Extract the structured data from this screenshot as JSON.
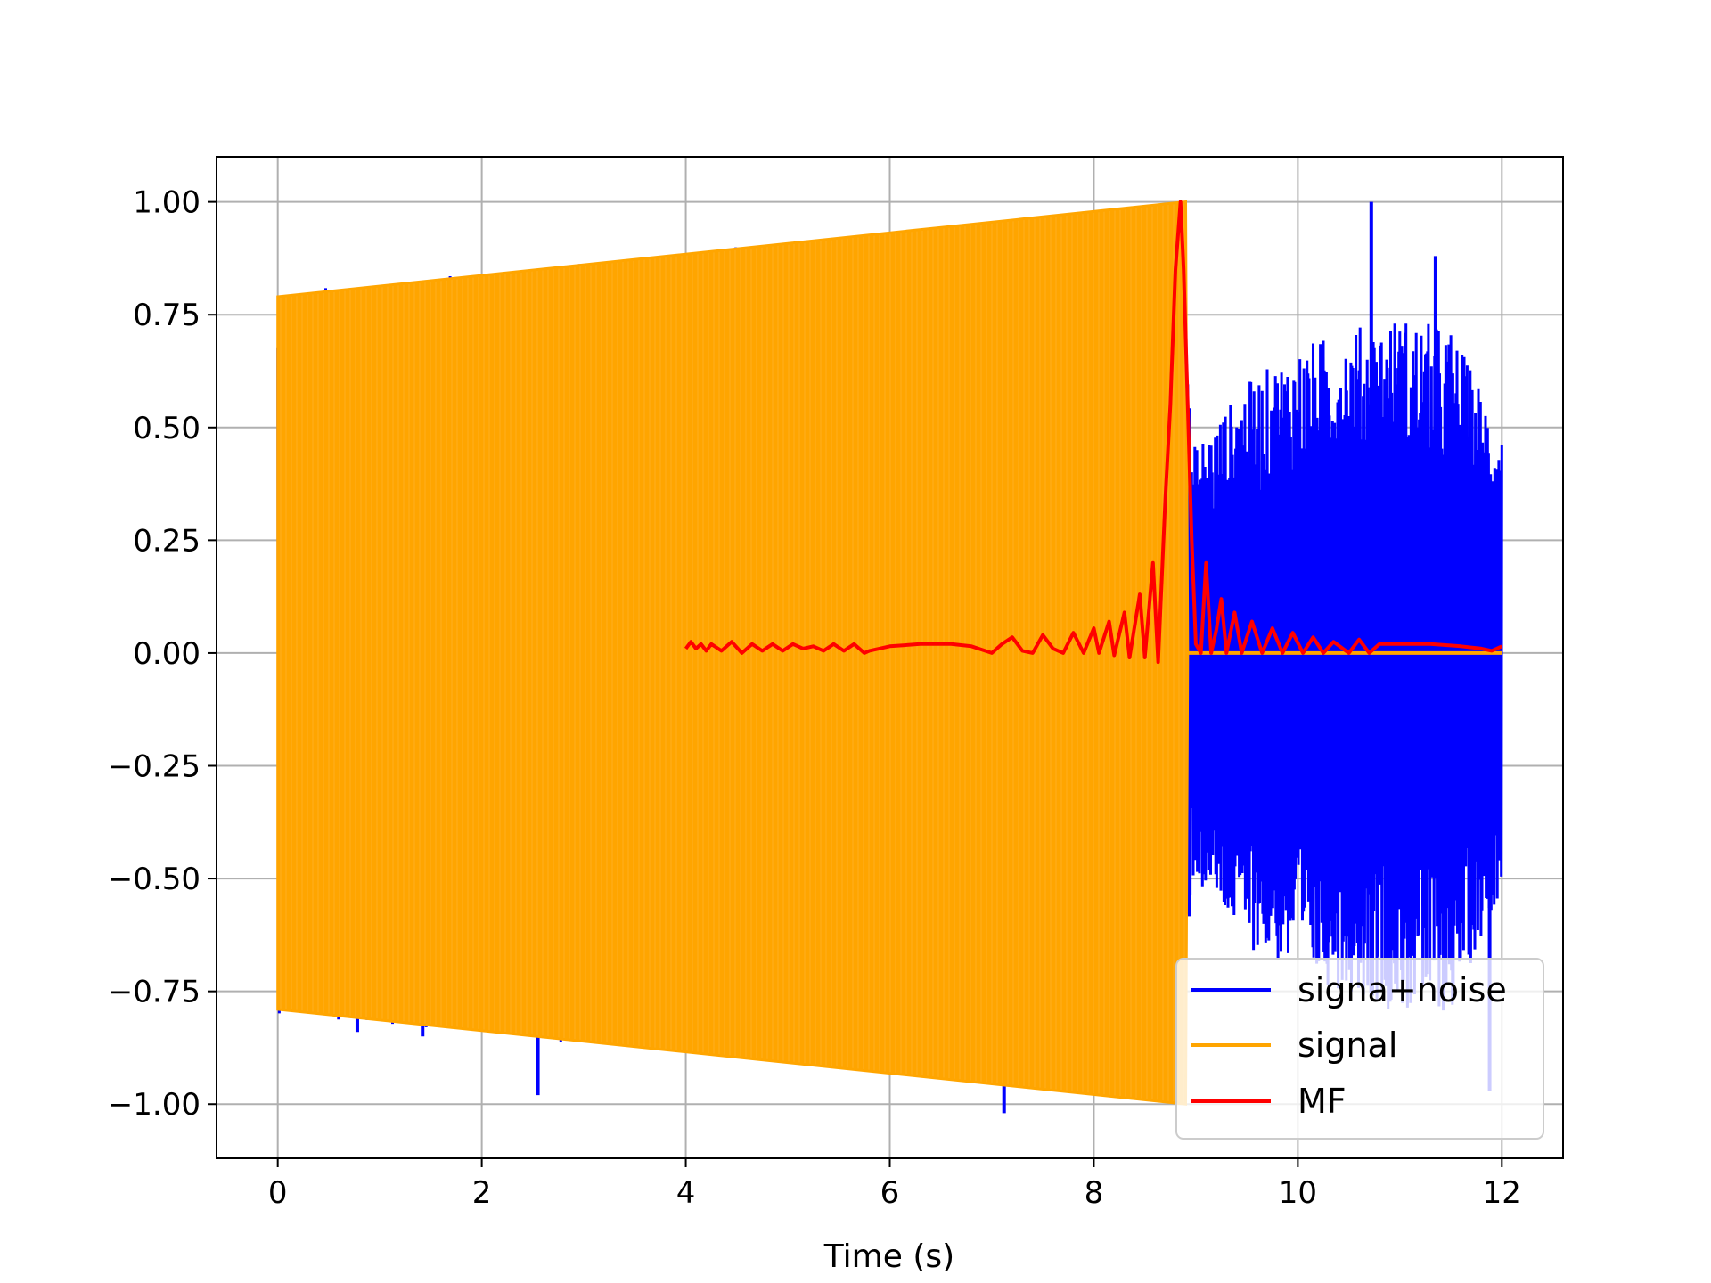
{
  "chart_data": {
    "type": "line",
    "title": "",
    "xlabel": "Time (s)",
    "ylabel": "",
    "xlim": [
      -0.6,
      12.6
    ],
    "ylim": [
      -1.12,
      1.1
    ],
    "xticks": [
      0,
      2,
      4,
      6,
      8,
      10,
      12
    ],
    "xtick_labels": [
      "0",
      "2",
      "4",
      "6",
      "8",
      "10",
      "12"
    ],
    "yticks": [
      1.0,
      0.75,
      0.5,
      0.25,
      0.0,
      -0.25,
      -0.5,
      -0.75,
      -1.0
    ],
    "ytick_labels": [
      "1.00",
      "0.75",
      "0.50",
      "0.25",
      "0.00",
      "−0.25",
      "−0.50",
      "−0.75",
      "−1.00"
    ],
    "grid": true,
    "legend_position": "bottom-right",
    "series": [
      {
        "name": "signa+noise",
        "color": "#0000ff",
        "description_kind": "noise-envelope",
        "envelope": {
          "x": [
            0.0,
            8.9,
            8.95,
            9.5,
            10.0,
            10.5,
            11.0,
            11.5,
            12.0
          ],
          "upper": [
            0.8,
            1.0,
            0.45,
            0.6,
            0.68,
            0.72,
            0.75,
            0.72,
            0.5
          ],
          "lower": [
            -0.8,
            -1.0,
            -0.5,
            -0.65,
            -0.72,
            -0.75,
            -0.8,
            -0.8,
            -0.52
          ]
        },
        "spikes": [
          {
            "x": 2.55,
            "y": 0.85
          },
          {
            "x": 2.62,
            "y": 0.85
          },
          {
            "x": 3.22,
            "y": 0.85
          },
          {
            "x": 3.82,
            "y": 0.86
          },
          {
            "x": 8.15,
            "y": 0.98
          },
          {
            "x": 10.72,
            "y": 1.0
          },
          {
            "x": 11.35,
            "y": 0.88
          },
          {
            "x": 0.78,
            "y": -0.84
          },
          {
            "x": 1.42,
            "y": -0.85
          },
          {
            "x": 2.55,
            "y": -0.98
          },
          {
            "x": 2.95,
            "y": -0.84
          },
          {
            "x": 7.12,
            "y": -1.02
          },
          {
            "x": 11.88,
            "y": -0.97
          }
        ]
      },
      {
        "name": "signal",
        "color": "#ffa500",
        "description_kind": "filled-chirp",
        "envelope": {
          "x": [
            0.0,
            8.9,
            8.92,
            12.0
          ],
          "upper": [
            0.79,
            1.0,
            0.0,
            0.0
          ],
          "lower": [
            -0.79,
            -1.0,
            0.0,
            0.0
          ]
        }
      },
      {
        "name": "MF",
        "color": "#ff0000",
        "x": [
          4.0,
          4.05,
          4.1,
          4.15,
          4.2,
          4.25,
          4.35,
          4.45,
          4.55,
          4.65,
          4.75,
          4.85,
          4.95,
          5.05,
          5.15,
          5.25,
          5.35,
          5.45,
          5.55,
          5.65,
          5.75,
          5.8,
          6.0,
          6.3,
          6.6,
          6.8,
          7.0,
          7.1,
          7.2,
          7.3,
          7.4,
          7.5,
          7.6,
          7.7,
          7.8,
          7.9,
          8.0,
          8.05,
          8.15,
          8.2,
          8.3,
          8.35,
          8.45,
          8.5,
          8.58,
          8.63,
          8.7,
          8.75,
          8.8,
          8.85,
          8.88,
          8.92,
          8.96,
          9.0,
          9.05,
          9.1,
          9.15,
          9.2,
          9.25,
          9.3,
          9.38,
          9.45,
          9.55,
          9.65,
          9.75,
          9.85,
          9.95,
          10.05,
          10.15,
          10.25,
          10.35,
          10.5,
          10.6,
          10.7,
          10.8,
          11.0,
          11.3,
          11.6,
          11.8,
          11.9,
          11.95,
          12.0
        ],
        "y": [
          0.01,
          0.025,
          0.01,
          0.02,
          0.005,
          0.02,
          0.005,
          0.025,
          0.0,
          0.02,
          0.005,
          0.02,
          0.005,
          0.02,
          0.01,
          0.015,
          0.005,
          0.02,
          0.005,
          0.02,
          0.0,
          0.005,
          0.015,
          0.02,
          0.02,
          0.015,
          0.0,
          0.02,
          0.035,
          0.005,
          0.0,
          0.04,
          0.01,
          0.0,
          0.045,
          0.0,
          0.055,
          0.0,
          0.07,
          -0.005,
          0.09,
          -0.01,
          0.13,
          -0.01,
          0.2,
          -0.02,
          0.34,
          0.55,
          0.85,
          1.0,
          0.85,
          0.55,
          0.25,
          0.02,
          0.0,
          0.2,
          0.0,
          0.05,
          0.12,
          0.0,
          0.09,
          0.0,
          0.07,
          0.0,
          0.055,
          0.0,
          0.045,
          0.0,
          0.035,
          0.0,
          0.025,
          0.0,
          0.03,
          0.0,
          0.02,
          0.02,
          0.02,
          0.015,
          0.01,
          0.005,
          0.01,
          0.015
        ]
      }
    ]
  },
  "legend": {
    "items": [
      {
        "label": "signa+noise",
        "color": "#0000ff"
      },
      {
        "label": "signal",
        "color": "#ffa500"
      },
      {
        "label": "MF",
        "color": "#ff0000"
      }
    ]
  }
}
